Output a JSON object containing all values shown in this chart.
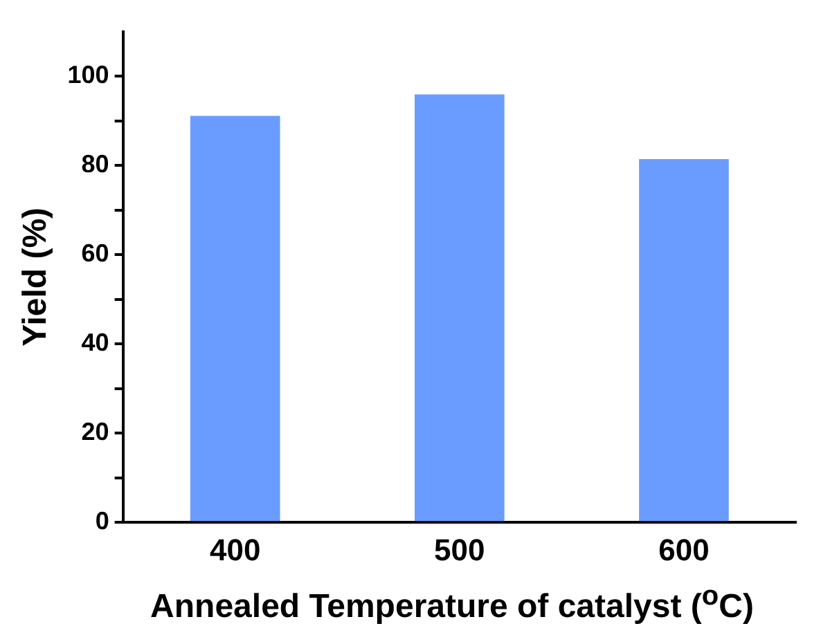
{
  "chart_data": {
    "type": "bar",
    "xlabel": "Annealed Temperature of catalyst ($^{o}$C)",
    "ylabel": "Yield (%)",
    "categories": [
      "400",
      "500",
      "600"
    ],
    "values": [
      91.1,
      95.9,
      81.4
    ],
    "color": "#6a9cff",
    "ylim": [
      0,
      110
    ],
    "yticks": [
      0,
      {
        "value": 10,
        "label": null
      },
      20,
      {
        "value": 30,
        "label": null
      },
      40,
      {
        "value": 50,
        "label": null
      },
      60,
      {
        "value": 70,
        "label": null
      },
      80,
      {
        "value": 90,
        "label": null
      },
      100
    ],
    "grid": false,
    "legend": false
  }
}
